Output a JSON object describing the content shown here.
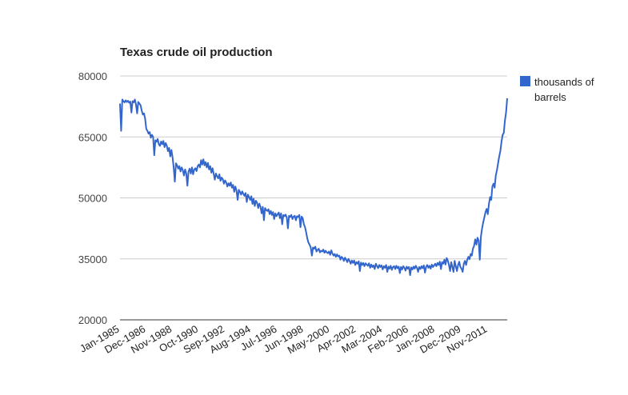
{
  "chart_data": {
    "type": "line",
    "title": "Texas crude oil production",
    "categories": [
      "Jan-1985",
      null,
      null,
      null,
      null,
      null,
      null,
      null,
      null,
      null,
      null,
      null,
      null,
      null,
      null,
      null,
      null,
      null,
      null,
      null,
      null,
      null,
      null,
      "Dec-1986",
      null,
      null,
      null,
      null,
      null,
      null,
      null,
      null,
      null,
      null,
      null,
      null,
      null,
      null,
      null,
      null,
      null,
      null,
      null,
      null,
      null,
      null,
      "Nov-1988",
      null,
      null,
      null,
      null,
      null,
      null,
      null,
      null,
      null,
      null,
      null,
      null,
      null,
      null,
      null,
      null,
      null,
      null,
      null,
      null,
      null,
      null,
      "Oct-1990",
      null,
      null,
      null,
      null,
      null,
      null,
      null,
      null,
      null,
      null,
      null,
      null,
      null,
      null,
      null,
      null,
      null,
      null,
      null,
      null,
      null,
      null,
      "Sep-1992",
      null,
      null,
      null,
      null,
      null,
      null,
      null,
      null,
      null,
      null,
      null,
      null,
      null,
      null,
      null,
      null,
      null,
      null,
      null,
      null,
      null,
      null,
      "Aug-1994",
      null,
      null,
      null,
      null,
      null,
      null,
      null,
      null,
      null,
      null,
      null,
      null,
      null,
      null,
      null,
      null,
      null,
      null,
      null,
      null,
      null,
      null,
      "Jul-1996",
      null,
      null,
      null,
      null,
      null,
      null,
      null,
      null,
      null,
      null,
      null,
      null,
      null,
      null,
      null,
      null,
      null,
      null,
      null,
      null,
      null,
      null,
      "Jun-1998",
      null,
      null,
      null,
      null,
      null,
      null,
      null,
      null,
      null,
      null,
      null,
      null,
      null,
      null,
      null,
      null,
      null,
      null,
      null,
      null,
      null,
      null,
      "May-2000",
      null,
      null,
      null,
      null,
      null,
      null,
      null,
      null,
      null,
      null,
      null,
      null,
      null,
      null,
      null,
      null,
      null,
      null,
      null,
      null,
      null,
      null,
      "Apr-2002",
      null,
      null,
      null,
      null,
      null,
      null,
      null,
      null,
      null,
      null,
      null,
      null,
      null,
      null,
      null,
      null,
      null,
      null,
      null,
      null,
      null,
      null,
      "Mar-2004",
      null,
      null,
      null,
      null,
      null,
      null,
      null,
      null,
      null,
      null,
      null,
      null,
      null,
      null,
      null,
      null,
      null,
      null,
      null,
      null,
      null,
      null,
      "Feb-2006",
      null,
      null,
      null,
      null,
      null,
      null,
      null,
      null,
      null,
      null,
      null,
      null,
      null,
      null,
      null,
      null,
      null,
      null,
      null,
      null,
      null,
      null,
      "Jan-2008",
      null,
      null,
      null,
      null,
      null,
      null,
      null,
      null,
      null,
      null,
      null,
      null,
      null,
      null,
      null,
      null,
      null,
      null,
      null,
      null,
      null,
      null,
      "Dec-2009",
      null,
      null,
      null,
      null,
      null,
      null,
      null,
      null,
      null,
      null,
      null,
      null,
      null,
      null,
      null,
      null,
      null,
      null,
      null,
      null,
      null,
      null,
      "Nov-2011",
      null,
      null,
      null,
      null,
      null,
      null,
      null,
      null,
      null,
      null,
      null,
      null,
      null,
      null,
      null,
      null,
      null
    ],
    "series": [
      {
        "name": "thousands of barrels",
        "color": "#3366cc",
        "values": [
          73200,
          66500,
          74200,
          73800,
          73500,
          74000,
          73600,
          73900,
          73400,
          73700,
          71000,
          73800,
          73500,
          74200,
          73000,
          70800,
          73600,
          73200,
          72800,
          71500,
          70500,
          70800,
          69500,
          67000,
          66500,
          65800,
          66200,
          64800,
          65500,
          65000,
          60500,
          64200,
          63800,
          64500,
          63200,
          62800,
          63900,
          63200,
          64000,
          62500,
          63500,
          62800,
          61500,
          62300,
          60200,
          61800,
          60000,
          57500,
          54000,
          58500,
          58000,
          57200,
          57800,
          56500,
          57500,
          56800,
          55500,
          57000,
          56000,
          53000,
          56500,
          57200,
          56000,
          57500,
          55800,
          57000,
          57300,
          56600,
          57800,
          58200,
          57500,
          59300,
          58200,
          59500,
          58000,
          58800,
          57500,
          58600,
          57000,
          57800,
          56200,
          57300,
          56000,
          54500,
          56000,
          55300,
          54800,
          55800,
          54200,
          55000,
          54600,
          53500,
          54300,
          53800,
          52800,
          53600,
          53000,
          53800,
          52500,
          53200,
          51500,
          52800,
          51800,
          49500,
          52000,
          51500,
          50800,
          51600,
          51000,
          50500,
          51200,
          49000,
          50800,
          50200,
          49500,
          50400,
          48500,
          49800,
          48000,
          49300,
          48800,
          47500,
          48600,
          47800,
          46200,
          47800,
          44500,
          47500,
          47000,
          46800,
          47200,
          46000,
          46800,
          45800,
          46500,
          44800,
          46200,
          45500,
          46000,
          46400,
          45000,
          46200,
          43500,
          45800,
          45500,
          45900,
          45200,
          42500,
          45600,
          45300,
          45800,
          44800,
          45400,
          45600,
          44500,
          45500,
          45300,
          45800,
          42800,
          45400,
          45000,
          43500,
          42800,
          41500,
          40000,
          39000,
          38500,
          37800,
          35800,
          37800,
          37500,
          38000,
          36800,
          37200,
          37500,
          36600,
          37000,
          36800,
          37300,
          36500,
          37000,
          36600,
          36400,
          36800,
          36000,
          37100,
          36300,
          35800,
          36200,
          35500,
          36100,
          35600,
          35800,
          34800,
          35500,
          35200,
          34500,
          35300,
          34800,
          34200,
          35000,
          34500,
          33800,
          34600,
          34000,
          34600,
          33500,
          34200,
          33800,
          34400,
          32000,
          34100,
          33500,
          34000,
          33200,
          33900,
          33600,
          33300,
          33900,
          32800,
          33600,
          33000,
          33400,
          32500,
          33800,
          33200,
          32700,
          33500,
          33000,
          33400,
          32400,
          33200,
          32800,
          33500,
          31800,
          33100,
          32600,
          33300,
          32300,
          33000,
          33200,
          32500,
          33300,
          32700,
          33100,
          31500,
          33000,
          32400,
          33200,
          32800,
          32100,
          33100,
          32600,
          33000,
          31000,
          32900,
          32400,
          33100,
          32600,
          33300,
          32800,
          31800,
          33000,
          32500,
          33200,
          32700,
          33400,
          31600,
          33000,
          33500,
          32800,
          33300,
          32600,
          33600,
          33000,
          33400,
          33800,
          33200,
          34000,
          33500,
          34300,
          32500,
          34200,
          33800,
          34800,
          33600,
          35200,
          34600,
          33500,
          32000,
          34200,
          33000,
          31800,
          34500,
          33200,
          32000,
          33500,
          34300,
          33000,
          32600,
          31800,
          33800,
          34500,
          33500,
          34800,
          35500,
          34900,
          36200,
          35800,
          37500,
          38200,
          39800,
          38500,
          40200,
          39500,
          34800,
          40500,
          42500,
          44000,
          45200,
          46500,
          47300,
          46000,
          48500,
          50200,
          49500,
          52800,
          53500,
          52500,
          55500,
          56800,
          58500,
          60200,
          61500,
          63800,
          65500,
          66000,
          69000,
          71000,
          74500
        ]
      }
    ],
    "ylim": [
      20000,
      80000
    ],
    "yticks": [
      20000,
      35000,
      50000,
      65000,
      80000
    ],
    "grid": true,
    "legend": "right"
  }
}
